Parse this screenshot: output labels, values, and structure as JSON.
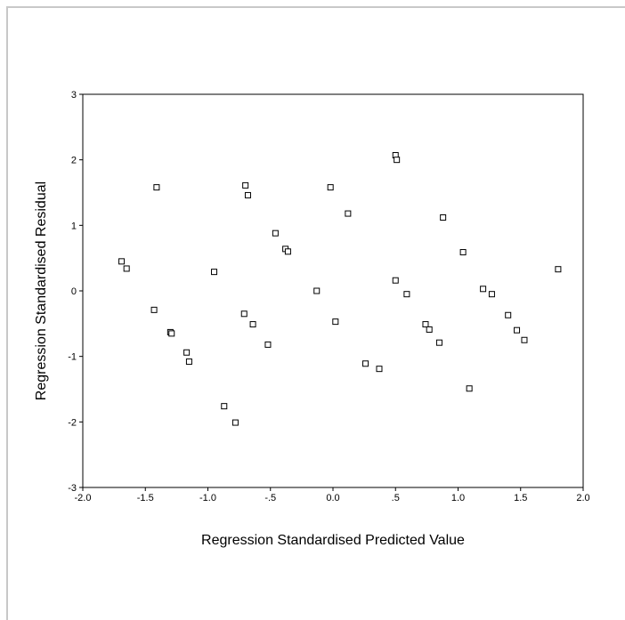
{
  "chart_data": {
    "type": "scatter",
    "title": "",
    "xlabel": "Regression Standardised Predicted Value",
    "ylabel": "Regression Standardised Residual",
    "xlim": [
      -2.0,
      2.0
    ],
    "ylim": [
      -3,
      3
    ],
    "xticks": [
      -2.0,
      -1.5,
      -1.0,
      -0.5,
      0.0,
      0.5,
      1.0,
      1.5,
      2.0
    ],
    "xtick_labels": [
      "-2.0",
      "-1.5",
      "-1.0",
      "-.5",
      "0.0",
      ".5",
      "1.0",
      "1.5",
      "2.0"
    ],
    "yticks": [
      -3,
      -2,
      -1,
      0,
      1,
      2,
      3
    ],
    "ytick_labels": [
      "-3",
      "-2",
      "-1",
      "0",
      "1",
      "2",
      "3"
    ],
    "grid": false,
    "marker": "open-square",
    "marker_color": "#000000",
    "points": [
      [
        -1.69,
        0.45
      ],
      [
        -1.65,
        0.34
      ],
      [
        -1.41,
        1.58
      ],
      [
        -1.43,
        -0.29
      ],
      [
        -1.3,
        -0.63
      ],
      [
        -1.29,
        -0.65
      ],
      [
        -1.17,
        -0.94
      ],
      [
        -1.15,
        -1.08
      ],
      [
        -0.95,
        0.29
      ],
      [
        -0.87,
        -1.76
      ],
      [
        -0.78,
        -2.01
      ],
      [
        -0.7,
        1.61
      ],
      [
        -0.68,
        1.46
      ],
      [
        -0.71,
        -0.35
      ],
      [
        -0.64,
        -0.51
      ],
      [
        -0.52,
        -0.82
      ],
      [
        -0.46,
        0.88
      ],
      [
        -0.38,
        0.64
      ],
      [
        -0.36,
        0.6
      ],
      [
        -0.13,
        0.0
      ],
      [
        -0.02,
        1.58
      ],
      [
        0.02,
        -0.47
      ],
      [
        0.12,
        1.18
      ],
      [
        0.26,
        -1.11
      ],
      [
        0.37,
        -1.19
      ],
      [
        0.5,
        2.07
      ],
      [
        0.51,
        2.0
      ],
      [
        0.5,
        0.16
      ],
      [
        0.59,
        -0.05
      ],
      [
        0.74,
        -0.51
      ],
      [
        0.77,
        -0.59
      ],
      [
        0.85,
        -0.79
      ],
      [
        0.88,
        1.12
      ],
      [
        1.04,
        0.59
      ],
      [
        1.09,
        -1.49
      ],
      [
        1.2,
        0.03
      ],
      [
        1.27,
        -0.05
      ],
      [
        1.4,
        -0.37
      ],
      [
        1.47,
        -0.6
      ],
      [
        1.53,
        -0.75
      ],
      [
        1.8,
        0.33
      ]
    ]
  }
}
